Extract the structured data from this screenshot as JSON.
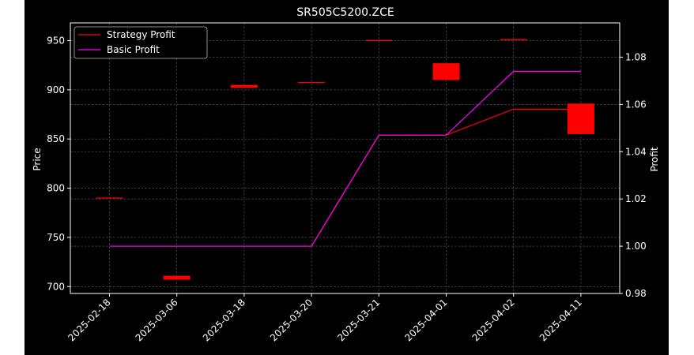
{
  "colors": {
    "background": "#000000",
    "axes": "#ffffff",
    "grid": "#b0b0b0",
    "candle": "#ff0000",
    "strategy": "#ff0000",
    "basic": "#ff00ff"
  },
  "chart_data": {
    "type": "line",
    "title": "SR505C5200.ZCE",
    "ylabel_left": "Price",
    "ylabel_right": "Profit",
    "categories": [
      "2025-02-18",
      "2025-03-06",
      "2025-03-18",
      "2025-03-20",
      "2025-03-21",
      "2025-04-01",
      "2025-04-02",
      "2025-04-11"
    ],
    "ylim_left": [
      693,
      968
    ],
    "ylim_right": [
      0.98,
      1.0945
    ],
    "yticks_left": [
      "700",
      "750",
      "800",
      "850",
      "900",
      "950"
    ],
    "yticks_right": [
      "0.98",
      "1.00",
      "1.02",
      "1.04",
      "1.06",
      "1.08"
    ],
    "grid": true,
    "legend_position": "upper-left",
    "candles": [
      {
        "date": "2025-02-18",
        "open": 790,
        "close": 790
      },
      {
        "date": "2025-03-06",
        "open": 711,
        "close": 707
      },
      {
        "date": "2025-03-18",
        "open": 905,
        "close": 902
      },
      {
        "date": "2025-03-20",
        "open": 908,
        "close": 907
      },
      {
        "date": "2025-03-21",
        "open": 950,
        "close": 950
      },
      {
        "date": "2025-04-01",
        "open": 927,
        "close": 910
      },
      {
        "date": "2025-04-02",
        "open": 951,
        "close": 951
      },
      {
        "date": "2025-04-11",
        "open": 886,
        "close": 855
      }
    ],
    "series": [
      {
        "name": "Strategy Profit",
        "color": "#ff0000",
        "values": [
          1.0,
          1.0,
          1.0,
          1.0,
          1.047,
          1.047,
          1.058,
          1.058
        ]
      },
      {
        "name": "Basic Profit",
        "color": "#ff00ff",
        "values": [
          1.0,
          1.0,
          1.0,
          1.0,
          1.047,
          1.047,
          1.074,
          1.074
        ]
      }
    ]
  }
}
